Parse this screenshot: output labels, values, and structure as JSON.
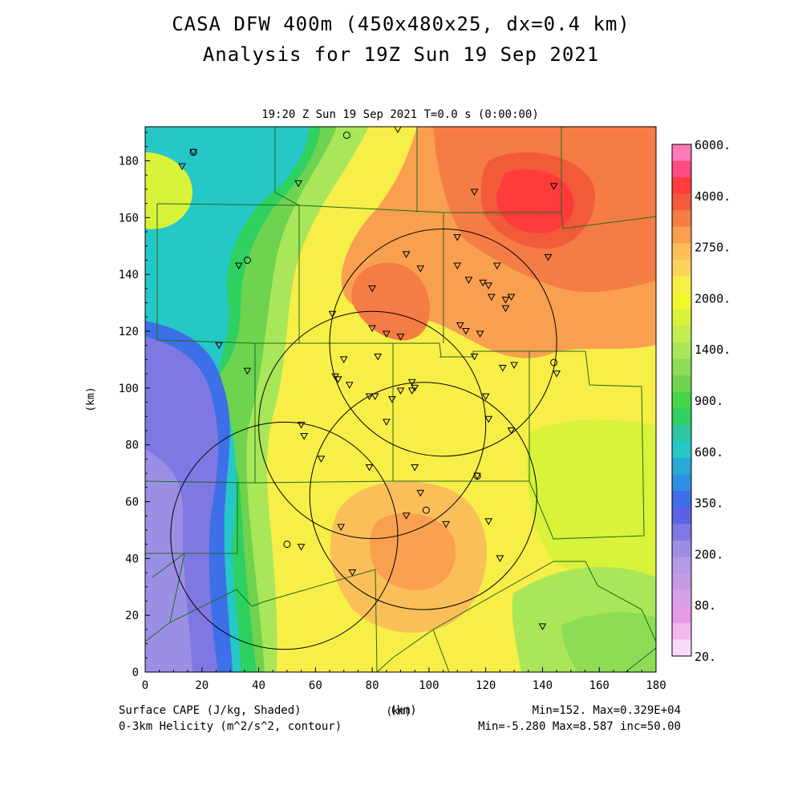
{
  "title_line1": "CASA DFW 400m (450x480x25, dx=0.4 km)",
  "title_line2": "Analysis for 19Z Sun 19 Sep 2021",
  "subtitle": "19:20 Z Sun 19 Sep 2021    T=0.0 s (0:00:00)",
  "axes": {
    "x_label": "(km)",
    "y_label": "(km)",
    "x_range": [
      0,
      180
    ],
    "y_range": [
      0,
      192
    ],
    "x_ticks": [
      "0",
      "20",
      "40",
      "60",
      "80",
      "100",
      "120",
      "140",
      "160",
      "180"
    ],
    "y_ticks": [
      "0",
      "20",
      "40",
      "60",
      "80",
      "100",
      "120",
      "140",
      "160",
      "180"
    ]
  },
  "colorbar": {
    "labels": [
      "6000.",
      "4000.",
      "2750.",
      "2000.",
      "1400.",
      "900.",
      "600.",
      "350.",
      "200.",
      "80.",
      "20."
    ],
    "colors": [
      "#ff7ab8",
      "#ff4a82",
      "#ff3b3b",
      "#f25a3a",
      "#f57c45",
      "#f8a050",
      "#fbbf5a",
      "#fbd35a",
      "#f8ee48",
      "#f0f72e",
      "#d9f23a",
      "#c3ec52",
      "#a9e65a",
      "#8ddc55",
      "#6ed34f",
      "#46d44a",
      "#2ed060",
      "#2dc6a2",
      "#26c7c7",
      "#2aa9d9",
      "#2f8fe3",
      "#3d6fe8",
      "#5c62e6",
      "#7f78e2",
      "#9a8fe4",
      "#b39be6",
      "#c69be6",
      "#d9a0ea",
      "#e79ae6",
      "#f2b8ef",
      "#fbd9fb"
    ]
  },
  "fields": {
    "shaded": "Surface CAPE (J/kg, Shaded)",
    "contour": "0-3km Helicity (m^2/s^2, contour)",
    "shaded_stats": "Min=152. Max=0.329E+04",
    "contour_stats": "Min=-5.280 Max=8.587 inc=50.00"
  },
  "radar_rings_km": [
    {
      "x": 49,
      "y": 48,
      "r": 40
    },
    {
      "x": 80,
      "y": 87,
      "r": 40
    },
    {
      "x": 105,
      "y": 116,
      "r": 40
    },
    {
      "x": 98,
      "y": 62,
      "r": 40
    }
  ],
  "stations_triangle": [
    [
      13,
      178
    ],
    [
      17,
      183
    ],
    [
      54,
      172
    ],
    [
      33,
      143
    ],
    [
      26,
      115
    ],
    [
      36,
      106
    ],
    [
      66,
      126
    ],
    [
      70,
      110
    ],
    [
      67,
      104
    ],
    [
      68,
      103
    ],
    [
      72,
      101
    ],
    [
      80,
      135
    ],
    [
      80,
      121
    ],
    [
      85,
      119
    ],
    [
      90,
      118
    ],
    [
      82,
      111
    ],
    [
      79,
      97
    ],
    [
      81,
      97
    ],
    [
      85,
      88
    ],
    [
      87,
      96
    ],
    [
      90,
      99
    ],
    [
      94,
      102
    ],
    [
      94,
      99
    ],
    [
      95,
      100
    ],
    [
      92,
      147
    ],
    [
      97,
      142
    ],
    [
      110,
      153
    ],
    [
      110,
      143
    ],
    [
      114,
      138
    ],
    [
      119,
      137
    ],
    [
      121,
      136
    ],
    [
      122,
      132
    ],
    [
      124,
      143
    ],
    [
      127,
      131
    ],
    [
      127,
      128
    ],
    [
      129,
      132
    ],
    [
      111,
      122
    ],
    [
      113,
      120
    ],
    [
      118,
      119
    ],
    [
      116,
      111
    ],
    [
      126,
      107
    ],
    [
      130,
      108
    ],
    [
      120,
      97
    ],
    [
      121,
      89
    ],
    [
      129,
      85
    ],
    [
      55,
      87
    ],
    [
      56,
      83
    ],
    [
      62,
      75
    ],
    [
      79,
      72
    ],
    [
      95,
      72
    ],
    [
      97,
      63
    ],
    [
      92,
      55
    ],
    [
      106,
      52
    ],
    [
      117,
      69
    ],
    [
      121,
      53
    ],
    [
      125,
      40
    ],
    [
      69,
      51
    ],
    [
      73,
      35
    ],
    [
      55,
      44
    ],
    [
      116,
      169
    ],
    [
      142,
      146
    ],
    [
      144,
      171
    ],
    [
      145,
      105
    ],
    [
      140,
      16
    ],
    [
      89,
      191
    ]
  ],
  "stations_circle": [
    [
      17,
      183
    ],
    [
      36,
      145
    ],
    [
      71,
      189
    ],
    [
      50,
      45
    ],
    [
      99,
      57
    ],
    [
      117,
      69
    ],
    [
      144,
      109
    ]
  ]
}
